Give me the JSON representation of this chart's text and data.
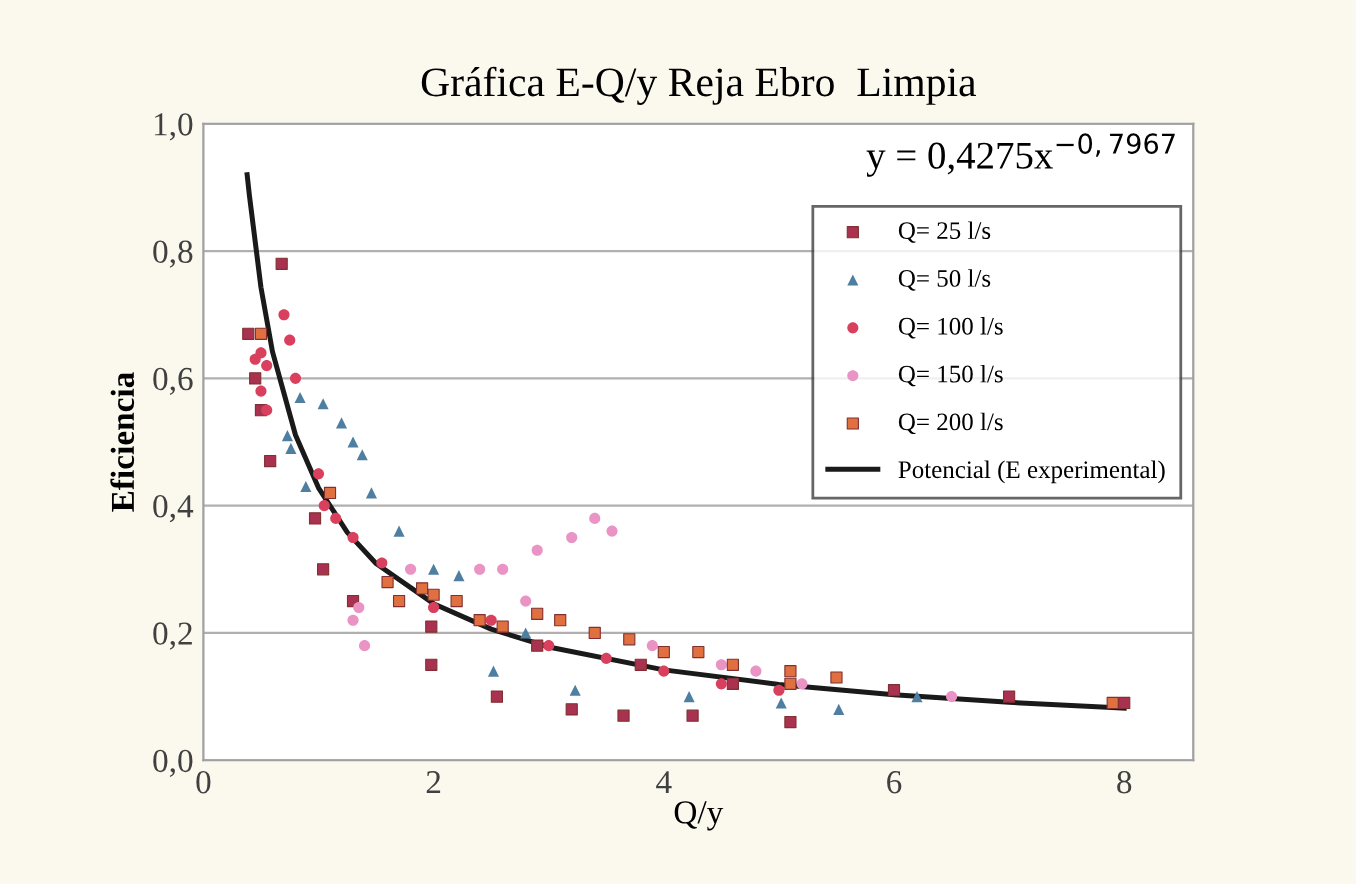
{
  "chart_data": {
    "type": "scatter",
    "title": "Gráfica E-Q/y Reja Ebro  Limpia",
    "xlabel": "Q/y",
    "ylabel": "Eficiencia",
    "xlim": [
      0,
      8.6
    ],
    "ylim": [
      0,
      1.0
    ],
    "xticks": [
      0,
      2,
      4,
      6,
      8
    ],
    "yticks": [
      {
        "value": 0,
        "label": "0,0"
      },
      {
        "value": 0.2,
        "label": "0,2"
      },
      {
        "value": 0.4,
        "label": "0,4"
      },
      {
        "value": 0.6,
        "label": "0,6"
      },
      {
        "value": 0.8,
        "label": "0,8"
      },
      {
        "value": 1.0,
        "label": "1,0"
      }
    ],
    "grid": "y",
    "legend": "top right",
    "annotations": [
      "y = 0,4275x$^{−0,7967}$"
    ],
    "series": [
      {
        "name": "Q= 25 l/s",
        "color": "#a83250",
        "marker": "square",
        "x": [
          0.39,
          0.68,
          0.58,
          0.97,
          1.04,
          1.98,
          2.55,
          1.98,
          3.2,
          3.65,
          4.25,
          5.1,
          0.45,
          0.5,
          1.3,
          2.9,
          3.8,
          4.6,
          6.0,
          7.0,
          8.0
        ],
        "values": [
          0.67,
          0.78,
          0.47,
          0.38,
          0.3,
          0.15,
          0.1,
          0.21,
          0.08,
          0.07,
          0.07,
          0.06,
          0.6,
          0.55,
          0.25,
          0.18,
          0.15,
          0.12,
          0.11,
          0.1,
          0.09
        ]
      },
      {
        "name": "Q= 50 l/s",
        "color": "#4f7fa0",
        "marker": "triangle",
        "x": [
          0.84,
          1.04,
          0.73,
          0.76,
          1.2,
          1.3,
          1.38,
          0.89,
          1.46,
          2.52,
          2.22,
          3.23,
          4.22,
          5.02,
          5.52,
          1.7,
          2.0,
          2.8,
          6.2
        ],
        "values": [
          0.57,
          0.56,
          0.51,
          0.49,
          0.53,
          0.5,
          0.48,
          0.43,
          0.42,
          0.14,
          0.29,
          0.11,
          0.1,
          0.09,
          0.08,
          0.36,
          0.3,
          0.2,
          0.1
        ]
      },
      {
        "name": "Q= 100 l/s",
        "color": "#d8405e",
        "marker": "circle",
        "x": [
          0.45,
          0.5,
          0.55,
          0.5,
          0.55,
          0.7,
          0.75,
          0.8,
          1.0,
          1.05,
          1.15,
          1.3,
          1.55,
          2.0,
          2.5,
          3.0,
          3.5,
          4.0,
          4.5,
          5.0
        ],
        "values": [
          0.63,
          0.58,
          0.62,
          0.64,
          0.55,
          0.7,
          0.66,
          0.6,
          0.45,
          0.4,
          0.38,
          0.35,
          0.31,
          0.24,
          0.22,
          0.18,
          0.16,
          0.14,
          0.12,
          0.11
        ]
      },
      {
        "name": "Q= 150 l/s",
        "color": "#e994c4",
        "marker": "circle",
        "x": [
          1.3,
          1.35,
          1.4,
          1.8,
          2.4,
          2.6,
          2.9,
          3.2,
          3.4,
          3.55,
          2.8,
          3.9,
          4.5,
          4.8,
          5.2,
          6.5
        ],
        "values": [
          0.22,
          0.24,
          0.18,
          0.3,
          0.3,
          0.3,
          0.33,
          0.35,
          0.38,
          0.36,
          0.25,
          0.18,
          0.15,
          0.14,
          0.12,
          0.1
        ]
      },
      {
        "name": "Q= 200 l/s",
        "color": "#e07040",
        "marker": "square",
        "x": [
          1.6,
          1.7,
          1.9,
          2.0,
          2.2,
          2.4,
          2.6,
          2.9,
          3.1,
          3.4,
          3.7,
          4.0,
          4.3,
          4.6,
          5.1,
          5.1,
          5.5,
          7.9,
          1.1,
          0.5
        ],
        "values": [
          0.28,
          0.25,
          0.27,
          0.26,
          0.25,
          0.22,
          0.21,
          0.23,
          0.22,
          0.2,
          0.19,
          0.17,
          0.17,
          0.15,
          0.14,
          0.12,
          0.13,
          0.09,
          0.42,
          0.67
        ]
      },
      {
        "name": "Potencial (E experimental)",
        "type": "line",
        "color": "#1a1a1a",
        "marker": "none",
        "line_style": "solid",
        "x": [
          0.38,
          0.4,
          0.5,
          0.6,
          0.8,
          1.0,
          1.25,
          1.5,
          2.0,
          2.5,
          3.0,
          4.0,
          5.0,
          6.0,
          7.0,
          8.0
        ],
        "values": [
          0.92,
          0.887,
          0.743,
          0.642,
          0.511,
          0.428,
          0.358,
          0.309,
          0.246,
          0.206,
          0.178,
          0.142,
          0.119,
          0.103,
          0.091,
          0.082
        ]
      }
    ]
  }
}
